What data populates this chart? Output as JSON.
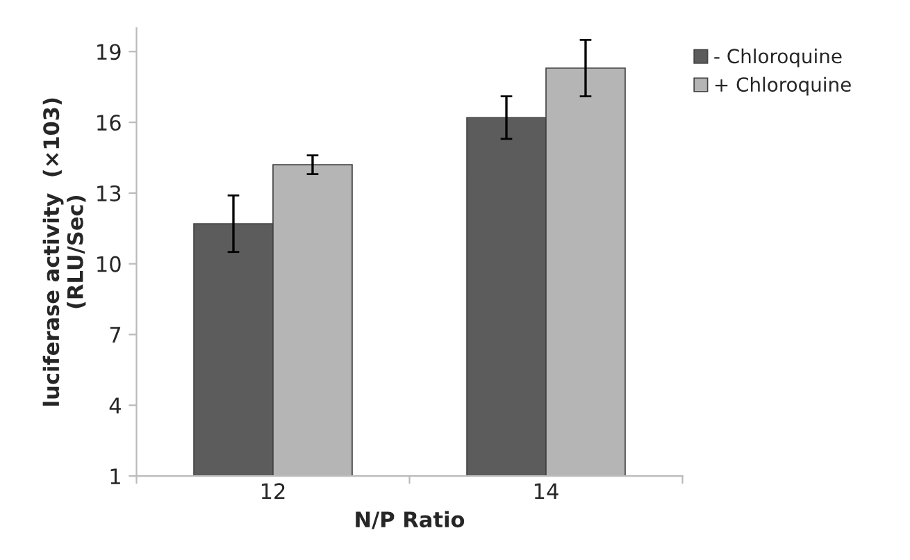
{
  "chart_data": {
    "type": "bar",
    "xlabel": "N/P Ratio",
    "ylabel": "luciferase activity  (×103)\n(RLU/Sec)",
    "categories": [
      "12",
      "14"
    ],
    "series": [
      {
        "name": "- Chloroquine",
        "color": "#5c5c5c",
        "values": [
          11.7,
          16.2
        ],
        "errors": [
          1.2,
          0.9
        ]
      },
      {
        "name": "+ Chloroquine",
        "color": "#b5b5b5",
        "values": [
          14.2,
          18.3
        ],
        "errors": [
          0.4,
          1.2
        ]
      }
    ],
    "ylim": [
      1,
      20
    ],
    "yticks": [
      1,
      4,
      7,
      10,
      13,
      16,
      19
    ],
    "grid": false,
    "legend": "top right"
  }
}
